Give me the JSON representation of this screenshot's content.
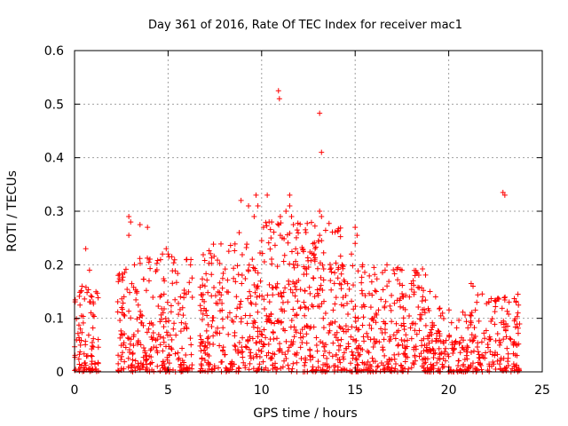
{
  "chart_data": {
    "type": "scatter",
    "title": "Day 361 of 2016, Rate Of TEC Index for receiver mac1",
    "xlabel": "GPS time / hours",
    "ylabel": "ROTI / TECUs",
    "xlim": [
      0,
      25
    ],
    "ylim": [
      0,
      0.6
    ],
    "x_ticks": [
      "0",
      "5",
      "10",
      "15",
      "20",
      "25"
    ],
    "y_ticks": [
      "0",
      "0.1",
      "0.2",
      "0.3",
      "0.4",
      "0.5",
      "0.6"
    ],
    "grid": true,
    "legend": "none",
    "marker": "plus",
    "color": "#ff0000",
    "density_bands": [
      {
        "x": [
          0.0,
          1.3
        ],
        "y_max": 0.16,
        "weight": 90
      },
      {
        "x": [
          2.3,
          3.3
        ],
        "y_max": 0.2,
        "weight": 70
      },
      {
        "x": [
          3.3,
          6.3
        ],
        "y_max": 0.22,
        "weight": 200
      },
      {
        "x": [
          6.7,
          10.2
        ],
        "y_max": 0.24,
        "weight": 260
      },
      {
        "x": [
          10.2,
          14.5
        ],
        "y_max": 0.28,
        "weight": 350
      },
      {
        "x": [
          14.5,
          18.8
        ],
        "y_max": 0.2,
        "weight": 300
      },
      {
        "x": [
          18.8,
          21.2
        ],
        "y_max": 0.12,
        "weight": 160
      },
      {
        "x": [
          21.2,
          23.8
        ],
        "y_max": 0.15,
        "weight": 150
      }
    ],
    "points": [
      [
        0.4,
        0.16
      ],
      [
        0.6,
        0.23
      ],
      [
        0.8,
        0.19
      ],
      [
        2.9,
        0.29
      ],
      [
        3.0,
        0.28
      ],
      [
        2.9,
        0.255
      ],
      [
        3.5,
        0.275
      ],
      [
        3.9,
        0.27
      ],
      [
        3.2,
        0.2
      ],
      [
        4.9,
        0.23
      ],
      [
        5.0,
        0.22
      ],
      [
        5.2,
        0.215
      ],
      [
        4.7,
        0.22
      ],
      [
        6.0,
        0.21
      ],
      [
        6.2,
        0.2
      ],
      [
        8.8,
        0.26
      ],
      [
        8.9,
        0.32
      ],
      [
        9.3,
        0.31
      ],
      [
        9.7,
        0.33
      ],
      [
        9.6,
        0.29
      ],
      [
        9.8,
        0.31
      ],
      [
        10.3,
        0.33
      ],
      [
        10.4,
        0.28
      ],
      [
        10.1,
        0.27
      ],
      [
        10.0,
        0.245
      ],
      [
        10.5,
        0.25
      ],
      [
        10.9,
        0.525
      ],
      [
        10.95,
        0.51
      ],
      [
        11.0,
        0.29
      ],
      [
        11.0,
        0.255
      ],
      [
        11.1,
        0.25
      ],
      [
        11.3,
        0.3
      ],
      [
        11.5,
        0.31
      ],
      [
        11.6,
        0.29
      ],
      [
        11.5,
        0.33
      ],
      [
        11.7,
        0.275
      ],
      [
        11.9,
        0.265
      ],
      [
        13.1,
        0.483
      ],
      [
        13.2,
        0.41
      ],
      [
        13.1,
        0.3
      ],
      [
        13.2,
        0.29
      ],
      [
        13.1,
        0.255
      ],
      [
        13.2,
        0.245
      ],
      [
        12.8,
        0.22
      ],
      [
        14.3,
        0.2
      ],
      [
        15.0,
        0.27
      ],
      [
        15.1,
        0.255
      ],
      [
        15.0,
        0.24
      ],
      [
        14.8,
        0.22
      ],
      [
        15.4,
        0.2
      ],
      [
        16.7,
        0.2
      ],
      [
        16.6,
        0.19
      ],
      [
        17.5,
        0.19
      ],
      [
        18.2,
        0.18
      ],
      [
        18.1,
        0.17
      ],
      [
        18.0,
        0.165
      ],
      [
        19.0,
        0.15
      ],
      [
        19.3,
        0.14
      ],
      [
        21.2,
        0.165
      ],
      [
        21.3,
        0.16
      ],
      [
        21.5,
        0.13
      ],
      [
        22.9,
        0.335
      ],
      [
        23.0,
        0.33
      ],
      [
        23.7,
        0.145
      ],
      [
        23.6,
        0.13
      ],
      [
        23.7,
        0.11
      ]
    ]
  }
}
